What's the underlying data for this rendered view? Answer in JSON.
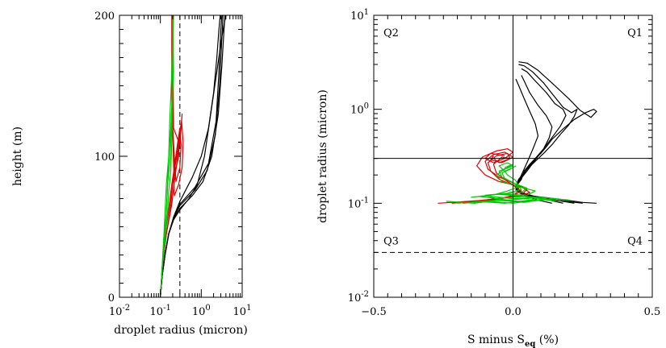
{
  "chart_data": [
    {
      "type": "line",
      "xlabel": "droplet radius (micron)",
      "ylabel": "height (m)",
      "xscale": "log",
      "xlim": [
        0.01,
        10
      ],
      "ylim": [
        0,
        200
      ],
      "x_ticks": [
        0.01,
        0.1,
        1,
        10
      ],
      "x_tick_labels": [
        {
          "base": "10",
          "exp": "-2"
        },
        {
          "base": "10",
          "exp": "-1"
        },
        {
          "base": "10",
          "exp": "0"
        },
        {
          "base": "10",
          "exp": "1"
        }
      ],
      "y_ticks": [
        0,
        100,
        200
      ],
      "y_tick_labels": [
        "0",
        "100",
        "200"
      ],
      "reference_lines": [
        {
          "orientation": "vertical",
          "x": 0.3,
          "style": "dashed"
        }
      ],
      "colors": {
        "black": "#000000",
        "red": "#e00000",
        "green": "#00c800"
      },
      "series": [
        {
          "color": "black",
          "x": [
            0.1,
            0.11,
            0.13,
            0.16,
            0.21,
            0.3,
            0.5,
            0.8,
            1.2,
            1.7,
            2.4,
            3.2,
            3.7,
            4.0
          ],
          "y": [
            0,
            15,
            30,
            45,
            55,
            62,
            70,
            80,
            100,
            130,
            160,
            185,
            195,
            200
          ]
        },
        {
          "color": "black",
          "x": [
            0.1,
            0.11,
            0.13,
            0.16,
            0.21,
            0.3,
            0.6,
            1.1,
            1.8,
            2.6,
            3.2,
            3.6,
            3.8
          ],
          "y": [
            0,
            15,
            30,
            45,
            55,
            63,
            72,
            82,
            100,
            130,
            165,
            190,
            200
          ]
        },
        {
          "color": "black",
          "x": [
            0.1,
            0.11,
            0.13,
            0.16,
            0.21,
            0.3,
            0.7,
            1.4,
            2.2,
            2.8,
            3.2,
            3.4
          ],
          "y": [
            0,
            15,
            30,
            45,
            56,
            65,
            76,
            90,
            115,
            150,
            185,
            200
          ]
        },
        {
          "color": "black",
          "x": [
            0.1,
            0.11,
            0.13,
            0.16,
            0.21,
            0.3,
            0.7,
            1.5,
            2.3,
            2.7,
            3.0,
            3.2
          ],
          "y": [
            0,
            15,
            30,
            45,
            56,
            66,
            78,
            95,
            125,
            160,
            190,
            200
          ]
        },
        {
          "color": "black",
          "x": [
            0.1,
            0.11,
            0.13,
            0.16,
            0.21,
            0.3,
            0.6,
            1.0,
            1.5,
            2.0,
            2.4,
            2.7,
            2.9
          ],
          "y": [
            0,
            15,
            30,
            45,
            57,
            68,
            85,
            100,
            120,
            145,
            170,
            190,
            200
          ]
        },
        {
          "color": "red",
          "x": [
            0.1,
            0.11,
            0.14,
            0.18,
            0.2,
            0.22,
            0.27,
            0.33,
            0.36,
            0.34,
            0.28,
            0.22,
            0.2,
            0.2,
            0.2
          ],
          "y": [
            0,
            20,
            45,
            65,
            80,
            90,
            110,
            125,
            110,
            92,
            80,
            72,
            120,
            160,
            200
          ]
        },
        {
          "color": "red",
          "x": [
            0.1,
            0.11,
            0.13,
            0.17,
            0.19,
            0.22,
            0.26,
            0.3,
            0.32,
            0.3,
            0.24,
            0.2,
            0.2
          ],
          "y": [
            0,
            20,
            45,
            65,
            80,
            92,
            108,
            120,
            108,
            92,
            82,
            120,
            200
          ]
        },
        {
          "color": "red",
          "x": [
            0.1,
            0.11,
            0.13,
            0.16,
            0.18,
            0.22,
            0.27,
            0.3,
            0.28,
            0.22,
            0.19,
            0.19
          ],
          "y": [
            0,
            20,
            45,
            62,
            75,
            90,
            105,
            118,
            100,
            86,
            140,
            200
          ]
        },
        {
          "color": "red",
          "x": [
            0.1,
            0.11,
            0.14,
            0.19,
            0.22,
            0.26,
            0.3,
            0.34,
            0.3,
            0.21,
            0.2
          ],
          "y": [
            0,
            20,
            45,
            66,
            82,
            98,
            112,
            130,
            108,
            120,
            200
          ]
        },
        {
          "color": "green",
          "x": [
            0.1,
            0.11,
            0.13,
            0.15,
            0.16,
            0.18,
            0.19,
            0.2,
            0.2
          ],
          "y": [
            0,
            20,
            40,
            60,
            75,
            90,
            110,
            140,
            200
          ]
        },
        {
          "color": "green",
          "x": [
            0.1,
            0.11,
            0.12,
            0.14,
            0.15,
            0.17,
            0.18,
            0.19,
            0.21,
            0.2
          ],
          "y": [
            0,
            20,
            40,
            60,
            80,
            95,
            110,
            130,
            160,
            200
          ]
        },
        {
          "color": "green",
          "x": [
            0.1,
            0.11,
            0.13,
            0.14,
            0.15,
            0.16,
            0.18,
            0.2,
            0.2
          ],
          "y": [
            0,
            20,
            40,
            60,
            80,
            100,
            120,
            150,
            200
          ]
        },
        {
          "color": "green",
          "x": [
            0.1,
            0.11,
            0.12,
            0.13,
            0.14,
            0.16,
            0.17,
            0.19,
            0.21
          ],
          "y": [
            0,
            20,
            40,
            60,
            80,
            100,
            125,
            160,
            200
          ]
        }
      ]
    },
    {
      "type": "line",
      "xlabel": "S minus S",
      "xlabel_subscript": "eq",
      "xlabel_suffix": " (%)",
      "ylabel": "droplet radius (micron)",
      "yscale": "log",
      "xlim": [
        -0.5,
        0.5
      ],
      "ylim": [
        0.01,
        10
      ],
      "x_ticks": [
        -0.5,
        0,
        0.5
      ],
      "x_tick_labels": [
        "−0.5",
        "0.0",
        "0.5"
      ],
      "y_ticks": [
        0.01,
        0.1,
        1,
        10
      ],
      "y_tick_labels": [
        {
          "base": "10",
          "exp": "-2"
        },
        {
          "base": "10",
          "exp": "-1"
        },
        {
          "base": "10",
          "exp": "0"
        },
        {
          "base": "10",
          "exp": "1"
        }
      ],
      "quadrant_labels": [
        "Q1",
        "Q2",
        "Q3",
        "Q4"
      ],
      "reference_lines": [
        {
          "orientation": "vertical",
          "x": 0,
          "style": "solid"
        },
        {
          "orientation": "horizontal",
          "y": 0.3,
          "style": "solid"
        },
        {
          "orientation": "horizontal",
          "y": 0.03,
          "style": "dashed"
        }
      ],
      "colors": {
        "black": "#000000",
        "red": "#e00000",
        "green": "#00c800"
      },
      "series": [
        {
          "color": "black",
          "x": [
            0.3,
            0.25,
            0.22,
            0.17,
            0.12,
            0.06,
            0.02,
            0.01,
            0.03,
            0.04,
            0.06,
            0.08,
            0.1,
            0.12,
            0.14,
            0.18,
            0.22,
            0.26,
            0.29,
            0.3,
            0.28,
            0.24,
            0.2,
            0.14,
            0.09,
            0.05,
            0.02
          ],
          "y": [
            0.1,
            0.102,
            0.105,
            0.11,
            0.115,
            0.12,
            0.13,
            0.15,
            0.18,
            0.22,
            0.26,
            0.3,
            0.34,
            0.4,
            0.48,
            0.62,
            0.78,
            0.92,
            1.0,
            0.95,
            0.82,
            0.98,
            1.3,
            1.9,
            2.6,
            3.1,
            3.2
          ]
        },
        {
          "color": "black",
          "x": [
            0.25,
            0.2,
            0.15,
            0.1,
            0.05,
            0.02,
            0.01,
            0.03,
            0.05,
            0.08,
            0.11,
            0.14,
            0.17,
            0.2,
            0.22,
            0.23,
            0.21,
            0.18,
            0.15,
            0.11,
            0.07,
            0.04,
            0.02
          ],
          "y": [
            0.1,
            0.104,
            0.108,
            0.113,
            0.12,
            0.13,
            0.15,
            0.19,
            0.23,
            0.28,
            0.34,
            0.42,
            0.54,
            0.68,
            0.84,
            1.0,
            0.92,
            1.05,
            1.35,
            1.9,
            2.5,
            2.9,
            3.0
          ]
        },
        {
          "color": "black",
          "x": [
            0.22,
            0.17,
            0.12,
            0.07,
            0.03,
            0.01,
            0.02,
            0.05,
            0.08,
            0.11,
            0.14,
            0.17,
            0.19,
            0.18,
            0.15,
            0.12,
            0.08,
            0.05,
            0.03
          ],
          "y": [
            0.1,
            0.106,
            0.112,
            0.12,
            0.13,
            0.15,
            0.18,
            0.23,
            0.3,
            0.38,
            0.5,
            0.66,
            0.86,
            1.0,
            1.15,
            1.5,
            2.0,
            2.5,
            2.7
          ]
        },
        {
          "color": "black",
          "x": [
            0.18,
            0.13,
            0.08,
            0.04,
            0.01,
            0.02,
            0.05,
            0.08,
            0.11,
            0.13,
            0.14,
            0.12,
            0.09,
            0.06,
            0.04,
            0.03
          ],
          "y": [
            0.1,
            0.108,
            0.115,
            0.125,
            0.14,
            0.17,
            0.22,
            0.29,
            0.38,
            0.5,
            0.65,
            0.85,
            1.1,
            1.5,
            2.0,
            2.3
          ]
        },
        {
          "color": "black",
          "x": [
            0.14,
            0.09,
            0.05,
            0.02,
            0.01,
            0.03,
            0.05,
            0.07,
            0.09,
            0.08,
            0.06,
            0.04,
            0.02,
            0.01
          ],
          "y": [
            0.1,
            0.108,
            0.118,
            0.13,
            0.15,
            0.2,
            0.27,
            0.37,
            0.52,
            0.7,
            0.95,
            1.3,
            1.8,
            2.1
          ]
        },
        {
          "color": "red",
          "x": [
            -0.27,
            -0.2,
            -0.12,
            -0.05,
            0.02,
            0.06,
            0.03,
            -0.05,
            -0.1,
            -0.13,
            -0.11,
            -0.06,
            -0.02,
            0.0,
            -0.03,
            -0.07,
            -0.1,
            -0.08,
            -0.03
          ],
          "y": [
            0.1,
            0.103,
            0.107,
            0.112,
            0.118,
            0.13,
            0.15,
            0.17,
            0.2,
            0.25,
            0.31,
            0.36,
            0.38,
            0.35,
            0.3,
            0.27,
            0.3,
            0.34,
            0.32
          ]
        },
        {
          "color": "red",
          "x": [
            -0.22,
            -0.15,
            -0.08,
            -0.02,
            0.03,
            0.05,
            0.01,
            -0.05,
            -0.09,
            -0.1,
            -0.07,
            -0.03,
            0.0,
            -0.04,
            -0.08,
            -0.07
          ],
          "y": [
            0.1,
            0.104,
            0.11,
            0.116,
            0.123,
            0.14,
            0.16,
            0.19,
            0.23,
            0.28,
            0.33,
            0.35,
            0.31,
            0.27,
            0.29,
            0.32
          ]
        },
        {
          "color": "red",
          "x": [
            -0.18,
            -0.11,
            -0.05,
            0.0,
            0.03,
            0.0,
            -0.05,
            -0.08,
            -0.09,
            -0.06,
            -0.02,
            -0.01,
            -0.05,
            -0.07
          ],
          "y": [
            0.1,
            0.105,
            0.112,
            0.12,
            0.135,
            0.155,
            0.18,
            0.22,
            0.27,
            0.32,
            0.34,
            0.3,
            0.27,
            0.3
          ]
        },
        {
          "color": "red",
          "x": [
            -0.14,
            -0.08,
            -0.03,
            0.01,
            0.02,
            -0.02,
            -0.06,
            -0.07,
            -0.04,
            -0.01,
            -0.04
          ],
          "y": [
            0.1,
            0.106,
            0.114,
            0.125,
            0.145,
            0.17,
            0.21,
            0.26,
            0.31,
            0.3,
            0.27
          ]
        },
        {
          "color": "green",
          "x": [
            -0.24,
            -0.14,
            -0.05,
            0.05,
            0.15,
            0.2,
            0.1,
            0.0,
            -0.1,
            -0.15,
            -0.05,
            0.05,
            0.08,
            0.02,
            -0.04,
            -0.06,
            -0.03,
            0.0,
            -0.02,
            -0.05,
            -0.03
          ],
          "y": [
            0.105,
            0.1,
            0.108,
            0.104,
            0.112,
            0.108,
            0.116,
            0.112,
            0.12,
            0.116,
            0.125,
            0.122,
            0.135,
            0.15,
            0.17,
            0.2,
            0.23,
            0.25,
            0.27,
            0.25,
            0.22
          ]
        },
        {
          "color": "green",
          "x": [
            -0.2,
            -0.1,
            0.0,
            0.1,
            0.17,
            0.08,
            -0.02,
            -0.12,
            -0.06,
            0.03,
            0.05,
            0.0,
            -0.04,
            -0.05,
            -0.02,
            0.0,
            -0.03
          ],
          "y": [
            0.1,
            0.106,
            0.1,
            0.11,
            0.105,
            0.114,
            0.108,
            0.118,
            0.124,
            0.13,
            0.145,
            0.165,
            0.19,
            0.22,
            0.24,
            0.26,
            0.24
          ]
        },
        {
          "color": "green",
          "x": [
            -0.16,
            -0.06,
            0.04,
            0.12,
            0.04,
            -0.06,
            -0.1,
            -0.02,
            0.03,
            0.01,
            -0.03,
            -0.04,
            -0.01,
            0.01
          ],
          "y": [
            0.102,
            0.108,
            0.102,
            0.112,
            0.118,
            0.112,
            0.122,
            0.128,
            0.14,
            0.16,
            0.185,
            0.21,
            0.23,
            0.25
          ]
        },
        {
          "color": "green",
          "x": [
            -0.12,
            -0.03,
            0.06,
            0.1,
            0.02,
            -0.06,
            -0.02,
            0.02,
            0.01,
            -0.02,
            -0.03,
            0.0
          ],
          "y": [
            0.104,
            0.1,
            0.108,
            0.115,
            0.12,
            0.125,
            0.135,
            0.15,
            0.175,
            0.2,
            0.22,
            0.24
          ]
        }
      ]
    }
  ]
}
